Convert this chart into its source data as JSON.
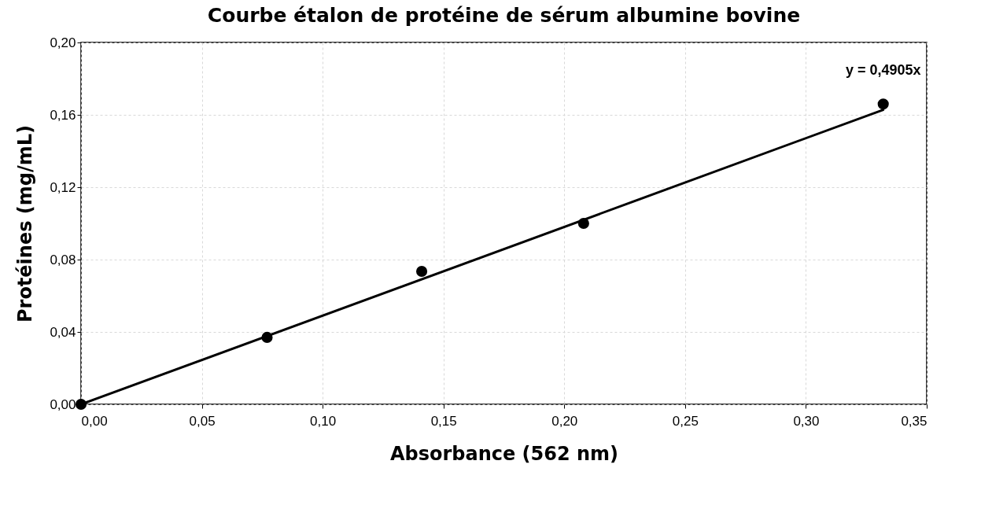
{
  "chart_data": {
    "type": "scatter",
    "title": "Courbe étalon de protéine de sérum albumine bovine",
    "xlabel": "Absorbance (562 nm)",
    "ylabel": "Protéines (mg/mL)",
    "x": [
      0,
      0.077,
      0.141,
      0.208,
      0.332
    ],
    "series": [
      {
        "type": "scatter",
        "color": "#000000",
        "marker": "circle",
        "values": [
          0,
          0.037,
          0.0735,
          0.1,
          0.166
        ]
      },
      {
        "type": "line",
        "color": "#000000",
        "line_style": "solid",
        "x": [
          0,
          0.332
        ],
        "values": [
          0,
          0.1628
        ]
      }
    ],
    "xlim": [
      0,
      0.35
    ],
    "ylim": [
      0,
      0.2
    ],
    "xticks": [
      {
        "value": 0,
        "label": "0,00"
      },
      {
        "value": 0.05,
        "label": "0,05"
      },
      {
        "value": 0.1,
        "label": "0,10"
      },
      {
        "value": 0.15,
        "label": "0,15"
      },
      {
        "value": 0.2,
        "label": "0,20"
      },
      {
        "value": 0.25,
        "label": "0,25"
      },
      {
        "value": 0.3,
        "label": "0,30"
      },
      {
        "value": 0.35,
        "label": "0,35"
      }
    ],
    "yticks": [
      {
        "value": 0,
        "label": "0,00"
      },
      {
        "value": 0.04,
        "label": "0,04"
      },
      {
        "value": 0.08,
        "label": "0,08"
      },
      {
        "value": 0.12,
        "label": "0,12"
      },
      {
        "value": 0.16,
        "label": "0,16"
      },
      {
        "value": 0.2,
        "label": "0,20"
      }
    ],
    "annotations": [
      {
        "text": "y = 0,4905x",
        "x": 0.332,
        "y": 0.1628
      }
    ],
    "grid": true
  }
}
